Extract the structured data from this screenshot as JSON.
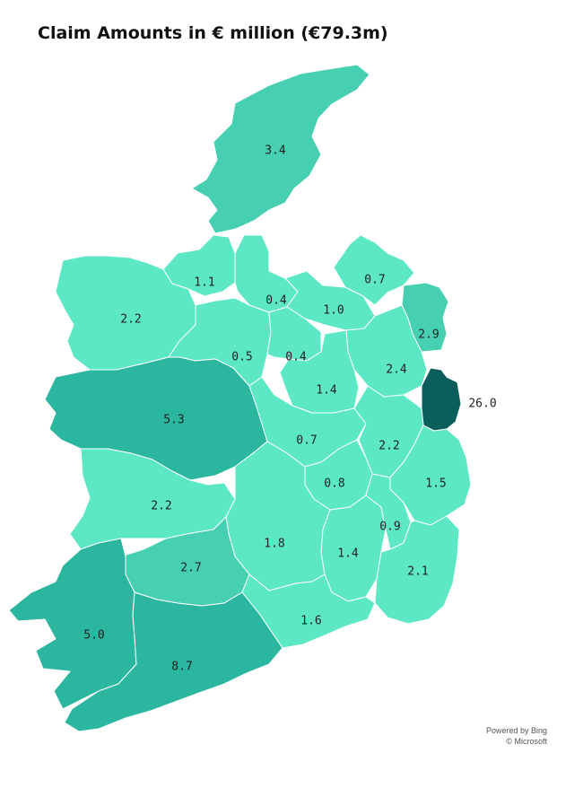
{
  "title": "Claim Amounts in € million (€79.3m)",
  "colors": {
    "light": "#5ce8c4",
    "mid": "#47cfb1",
    "high": "#2bb69f",
    "dark": "#0a5e5b",
    "border": "#ffffff"
  },
  "regions": [
    {
      "id": "donegal",
      "label": "3.4",
      "value": 3.4
    },
    {
      "id": "sligo",
      "label": "1.1",
      "value": 1.1
    },
    {
      "id": "leitrim",
      "label": "0.4",
      "value": 0.4
    },
    {
      "id": "cavan",
      "label": "1.0",
      "value": 1.0
    },
    {
      "id": "monaghan",
      "label": "0.7",
      "value": 0.7
    },
    {
      "id": "louth",
      "label": "2.9",
      "value": 2.9
    },
    {
      "id": "mayo",
      "label": "2.2",
      "value": 2.2
    },
    {
      "id": "roscommon",
      "label": "0.5",
      "value": 0.5
    },
    {
      "id": "longford",
      "label": "0.4",
      "value": 0.4
    },
    {
      "id": "meath",
      "label": "2.4",
      "value": 2.4
    },
    {
      "id": "westmeath",
      "label": "1.4",
      "value": 1.4
    },
    {
      "id": "dublin",
      "label": "26.0",
      "value": 26.0
    },
    {
      "id": "galway",
      "label": "5.3",
      "value": 5.3
    },
    {
      "id": "offaly",
      "label": "0.7",
      "value": 0.7
    },
    {
      "id": "kildare",
      "label": "2.2",
      "value": 2.2
    },
    {
      "id": "laois",
      "label": "0.8",
      "value": 0.8
    },
    {
      "id": "wicklow",
      "label": "1.5",
      "value": 1.5
    },
    {
      "id": "clare",
      "label": "2.2",
      "value": 2.2
    },
    {
      "id": "tipperary",
      "label": "1.8",
      "value": 1.8
    },
    {
      "id": "kilkenny",
      "label": "1.4",
      "value": 1.4
    },
    {
      "id": "carlow",
      "label": "0.9",
      "value": 0.9
    },
    {
      "id": "wexford",
      "label": "2.1",
      "value": 2.1
    },
    {
      "id": "limerick",
      "label": "2.7",
      "value": 2.7
    },
    {
      "id": "waterford",
      "label": "1.6",
      "value": 1.6
    },
    {
      "id": "kerry",
      "label": "5.0",
      "value": 5.0
    },
    {
      "id": "cork",
      "label": "8.7",
      "value": 8.7
    }
  ],
  "attribution": {
    "line1": "Powered by Bing",
    "line2": "© Microsoft"
  }
}
